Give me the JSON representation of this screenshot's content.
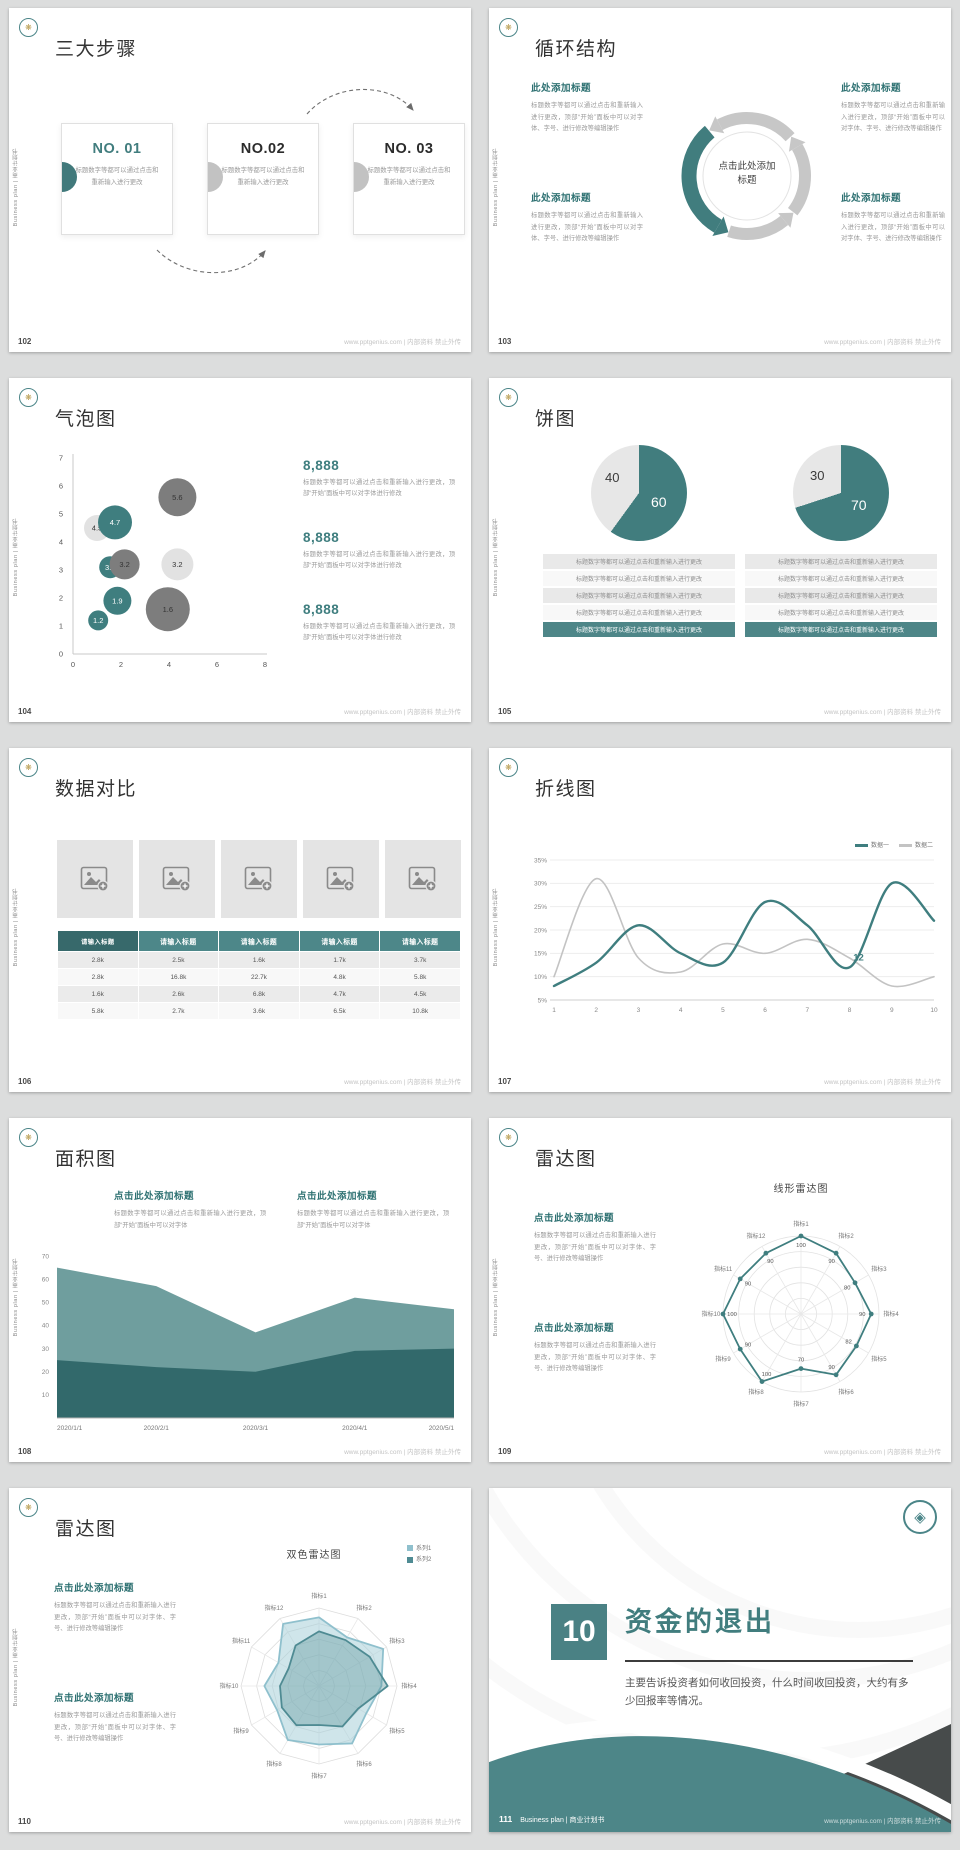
{
  "common": {
    "side_text": "Business plan | 商业计划书",
    "footer_url": "www.pptgenius.com | 内部资料 禁止外传"
  },
  "colors": {
    "accent_teal": "#417d7e",
    "dark_teal_area": "#2e6668",
    "mid_teal_area": "#5f9394",
    "gray_bubble": "#7d7d7d",
    "light_gray": "#e4e4e4",
    "table_header": "#4d8789",
    "table_header_first": "#37696b"
  },
  "slides": {
    "s102": {
      "num": "102",
      "title": "三大步骤",
      "steps": [
        {
          "no": "NO. 01",
          "body": "标题数字等都可以通过点击和重新输入进行更改"
        },
        {
          "no": "NO.02",
          "body": "标题数字等都可以通过点击和重新输入进行更改"
        },
        {
          "no": "NO. 03",
          "body": "标题数字等都可以通过点击和重新输入进行更改"
        }
      ]
    },
    "s103": {
      "num": "103",
      "title": "循环结构",
      "center": "点击此处添加标题",
      "blocks": [
        {
          "heading": "此处添加标题",
          "body": "标题数字等都可以通过点击和重新输入进行更改，顶部“开始”面板中可以对字体、字号、进行修改等编辑操作"
        },
        {
          "heading": "此处添加标题",
          "body": "标题数字等都可以通过点击和重新输入进行更改，顶部“开始”面板中可以对字体、字号、进行修改等编辑操作"
        },
        {
          "heading": "此处添加标题",
          "body": "标题数字等都可以通过点击和重新输入进行更改，顶部“开始”面板中可以对字体、字号、进行修改等编辑操作"
        },
        {
          "heading": "此处添加标题",
          "body": "标题数字等都可以通过点击和重新输入进行更改，顶部“开始”面板中可以对字体、字号、进行修改等编辑操作"
        }
      ]
    },
    "s104": {
      "num": "104",
      "title": "气泡图",
      "stats": [
        {
          "value": "8,888",
          "body": "标题数字等都可以通过点击和重新输入进行更改，顶部“开始”面板中可以对字体进行修改"
        },
        {
          "value": "8,888",
          "body": "标题数字等都可以通过点击和重新输入进行更改，顶部“开始”面板中可以对字体进行修改"
        },
        {
          "value": "8,888",
          "body": "标题数字等都可以通过点击和重新输入进行更改，顶部“开始”面板中可以对字体进行修改"
        }
      ]
    },
    "s105": {
      "num": "105",
      "title": "饼图",
      "row_text": "标题数字等都可以通过点击和重新输入进行更改"
    },
    "s106": {
      "num": "106",
      "title": "数据对比"
    },
    "s107": {
      "num": "107",
      "title": "折线图"
    },
    "s108": {
      "num": "108",
      "title": "面积图",
      "blocks": [
        {
          "heading": "点击此处添加标题",
          "body": "标题数字等都可以通过点击和重新输入进行更改，顶部“开始”面板中可以对字体"
        },
        {
          "heading": "点击此处添加标题",
          "body": "标题数字等都可以通过点击和重新输入进行更改，顶部“开始”面板中可以对字体"
        }
      ]
    },
    "s109": {
      "num": "109",
      "title": "雷达图",
      "blocks": [
        {
          "heading": "点击此处添加标题",
          "body": "标题数字等都可以通过点击和重新输入进行更改，顶部“开始”面板中可以对字体、字号、进行修改等编辑操作"
        },
        {
          "heading": "点击此处添加标题",
          "body": "标题数字等都可以通过点击和重新输入进行更改，顶部“开始”面板中可以对字体、字号、进行修改等编辑操作"
        }
      ]
    },
    "s110": {
      "num": "110",
      "title": "雷达图",
      "blocks": [
        {
          "heading": "点击此处添加标题",
          "body": "标题数字等都可以通过点击和重新输入进行更改，顶部“开始”面板中可以对字体、字号、进行修改等编辑操作"
        },
        {
          "heading": "点击此处添加标题",
          "body": "标题数字等都可以通过点击和重新输入进行更改，顶部“开始”面板中可以对字体、字号、进行修改等编辑操作"
        }
      ]
    },
    "s111": {
      "num": "111",
      "chapter": "10",
      "title": "资金的退出",
      "body": "主要告诉投资者如何收回投资，什么时间收回投资，大约有多少回报率等情况。",
      "footer_brand": "Business plan | 商业计划书"
    }
  },
  "chart_data": [
    {
      "slide": "104",
      "type": "bubble",
      "title": "气泡图",
      "xlim": [
        0,
        8
      ],
      "ylim": [
        0,
        7
      ],
      "xticks": [
        0,
        2,
        4,
        6,
        8
      ],
      "yticks": [
        0,
        1,
        2,
        3,
        4,
        5,
        6,
        7
      ],
      "points": [
        {
          "x": 1.0,
          "y": 4.5,
          "label": "4.5",
          "r": 13,
          "color": "light"
        },
        {
          "x": 1.75,
          "y": 4.7,
          "label": "4.7",
          "r": 17,
          "color": "teal"
        },
        {
          "x": 4.35,
          "y": 5.6,
          "label": "5.6",
          "r": 19,
          "color": "dark"
        },
        {
          "x": 1.55,
          "y": 3.1,
          "label": "3.1",
          "r": 11,
          "color": "teal"
        },
        {
          "x": 2.15,
          "y": 3.2,
          "label": "3.2",
          "r": 15,
          "color": "dark"
        },
        {
          "x": 4.35,
          "y": 3.2,
          "label": "3.2",
          "r": 16,
          "color": "light"
        },
        {
          "x": 1.85,
          "y": 1.9,
          "label": "1.9",
          "r": 14,
          "color": "teal"
        },
        {
          "x": 3.95,
          "y": 1.6,
          "label": "1.6",
          "r": 22,
          "color": "dark"
        },
        {
          "x": 1.05,
          "y": 1.2,
          "label": "1.2",
          "r": 10,
          "color": "teal"
        }
      ]
    },
    {
      "slide": "105",
      "type": "pie",
      "pies": [
        {
          "values": [
            {
              "label": "60",
              "value": 60,
              "color": "teal"
            },
            {
              "label": "40",
              "value": 40,
              "color": "gray"
            }
          ]
        },
        {
          "values": [
            {
              "label": "70",
              "value": 70,
              "color": "teal"
            },
            {
              "label": "30",
              "value": 30,
              "color": "gray"
            }
          ]
        }
      ],
      "colors": {
        "teal": "#417d7e",
        "gray": "#e7e7e7"
      }
    },
    {
      "slide": "106",
      "type": "table",
      "headers": [
        "请输入标题",
        "请输入标题",
        "请输入标题",
        "请输入标题",
        "请输入标题"
      ],
      "rows": [
        [
          "2.8k",
          "2.5k",
          "1.6k",
          "1.7k",
          "3.7k"
        ],
        [
          "2.8k",
          "16.8k",
          "22.7k",
          "4.8k",
          "5.8k"
        ],
        [
          "1.6k",
          "2.6k",
          "6.8k",
          "4.7k",
          "4.5k"
        ],
        [
          "5.8k",
          "2.7k",
          "3.6k",
          "6.5k",
          "10.8k"
        ]
      ]
    },
    {
      "slide": "107",
      "type": "line",
      "x": [
        1,
        2,
        3,
        4,
        5,
        6,
        7,
        8,
        9,
        10
      ],
      "ylim": [
        5,
        35
      ],
      "ylabels": [
        "35%",
        "30%",
        "25%",
        "20%",
        "15%",
        "10%",
        "5%"
      ],
      "series": [
        {
          "name": "数据一",
          "color": "#3f7e7f",
          "width": 2.4,
          "values": [
            8,
            13,
            21,
            15,
            13,
            26,
            21,
            12,
            30,
            22
          ]
        },
        {
          "name": "数据二",
          "color": "#c3c3c3",
          "width": 1.6,
          "values": [
            10,
            31,
            14,
            11,
            17,
            15,
            18,
            14,
            8,
            10
          ]
        }
      ],
      "callout": {
        "series": 0,
        "index": 7,
        "text": "12"
      }
    },
    {
      "slide": "108",
      "type": "area",
      "categories": [
        "2020/1/1",
        "2020/2/1",
        "2020/3/1",
        "2020/4/1",
        "2020/5/1"
      ],
      "ymax": 70,
      "yticks": [
        10,
        20,
        30,
        40,
        50,
        60,
        70
      ],
      "series": [
        {
          "color": "#5f9394",
          "opacity": 0.9,
          "values": [
            65,
            57,
            37,
            52,
            47
          ]
        },
        {
          "color": "#2e6668",
          "opacity": 0.95,
          "values": [
            25,
            22,
            20,
            29,
            30
          ]
        }
      ]
    },
    {
      "slide": "109",
      "type": "radar",
      "grid": "circle",
      "levels": 5,
      "max": 100,
      "title": "线形雷达图",
      "axes": [
        "指标1",
        "指标2",
        "指标3",
        "指标4",
        "指标5",
        "指标6",
        "指标7",
        "指标8",
        "指标9",
        "指标10",
        "指标11",
        "指标12"
      ],
      "series": [
        {
          "color": "#3f7e7f",
          "point_labels": true,
          "values": [
            100,
            90,
            80,
            90,
            82,
            90,
            70,
            100,
            90,
            100,
            90,
            90
          ]
        }
      ]
    },
    {
      "slide": "110",
      "type": "radar",
      "grid": "polygon",
      "levels": 5,
      "max": 100,
      "title": "双色雷达图",
      "axes": [
        "指标1",
        "指标2",
        "指标3",
        "指标4",
        "指标5",
        "指标6",
        "指标7",
        "指标8",
        "指标9",
        "指标10",
        "指标11",
        "指标12"
      ],
      "series": [
        {
          "name": "系列1",
          "color": "#8fc0cd",
          "fill": "rgba(168,207,217,0.55)",
          "values": [
            88,
            72,
            95,
            80,
            70,
            85,
            75,
            80,
            62,
            70,
            60,
            92
          ]
        },
        {
          "name": "系列2",
          "color": "#4f8b93",
          "fill": "rgba(79,139,147,0.35)",
          "values": [
            70,
            68,
            75,
            88,
            58,
            60,
            50,
            58,
            55,
            50,
            45,
            60
          ]
        }
      ]
    }
  ]
}
